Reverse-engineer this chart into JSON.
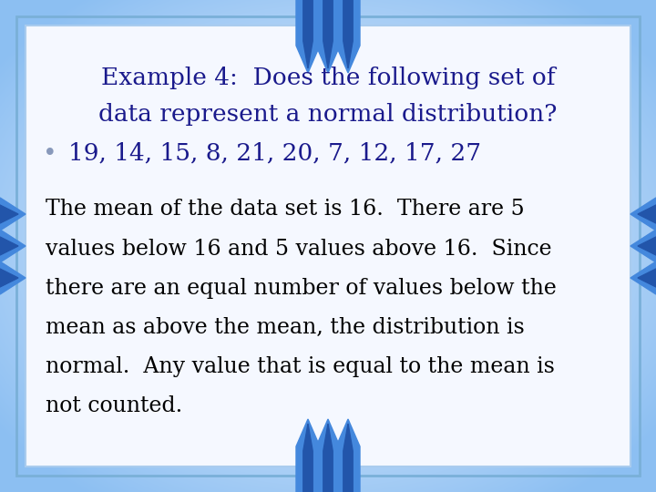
{
  "title_line1": "Example 4:  Does the following set of",
  "title_line2": "data represent a normal distribution?",
  "bullet_text": "19, 14, 15, 8, 21, 20, 7, 12, 17, 27",
  "body_lines": [
    "The mean of the data set is 16.  There are 5",
    "values below 16 and 5 values above 16.  Since",
    "there are an equal number of values below the",
    "mean as above the mean, the distribution is",
    "normal.  Any value that is equal to the mean is",
    "not counted."
  ],
  "bg_color": "#b8d4ee",
  "box_fill": "#f5f8ff",
  "box_edge_outer": "#7ab0d8",
  "box_edge_inner": "#aaccee",
  "title_color": "#1a1a8c",
  "bullet_color": "#1a1a8c",
  "body_color": "#000000",
  "chevron_color": "#2255bb",
  "side_arrow_color": "#3366cc",
  "title_fontsize": 19,
  "bullet_fontsize": 19,
  "body_fontsize": 17,
  "bullet_dot_color": "#8899bb"
}
